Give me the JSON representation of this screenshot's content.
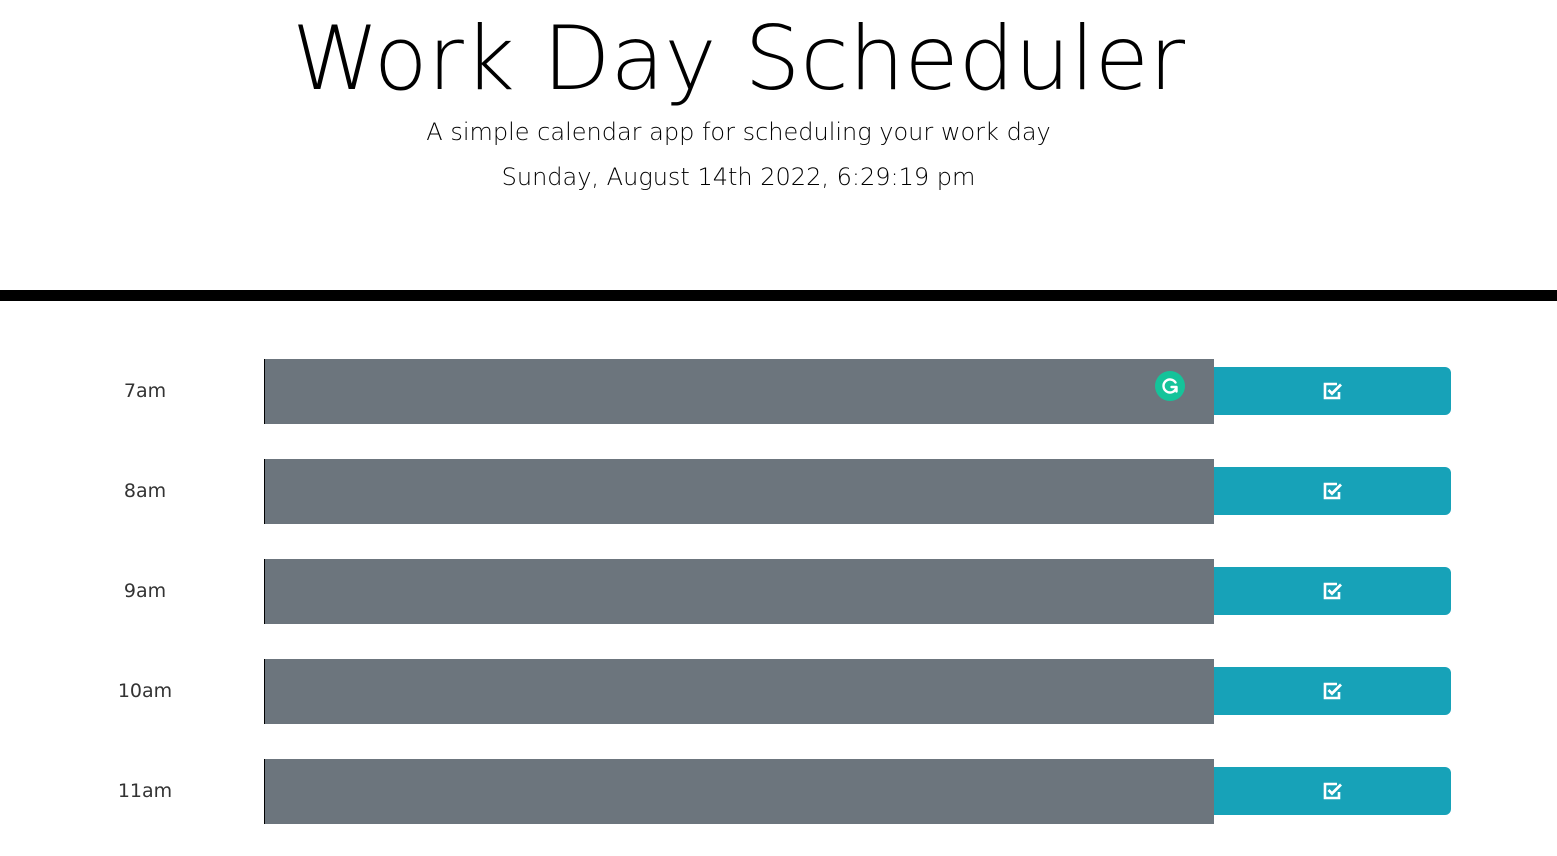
{
  "header": {
    "title": "Work Day Scheduler",
    "subtitle": "A simple calendar app for scheduling your work day",
    "current_day": "Sunday, August 14th 2022, 6:29:19 pm"
  },
  "timeblocks": [
    {
      "hour": "7am",
      "description": "",
      "status": "past"
    },
    {
      "hour": "8am",
      "description": "",
      "status": "past"
    },
    {
      "hour": "9am",
      "description": "",
      "status": "past"
    },
    {
      "hour": "10am",
      "description": "",
      "status": "past"
    },
    {
      "hour": "11am",
      "description": "",
      "status": "past"
    }
  ],
  "colors": {
    "past": "#6c757d",
    "save_button": "#17a2b8",
    "divider": "#000000",
    "grammarly": "#15c39a"
  },
  "icons": {
    "save": "check-square-icon",
    "grammarly": "grammarly-icon"
  }
}
